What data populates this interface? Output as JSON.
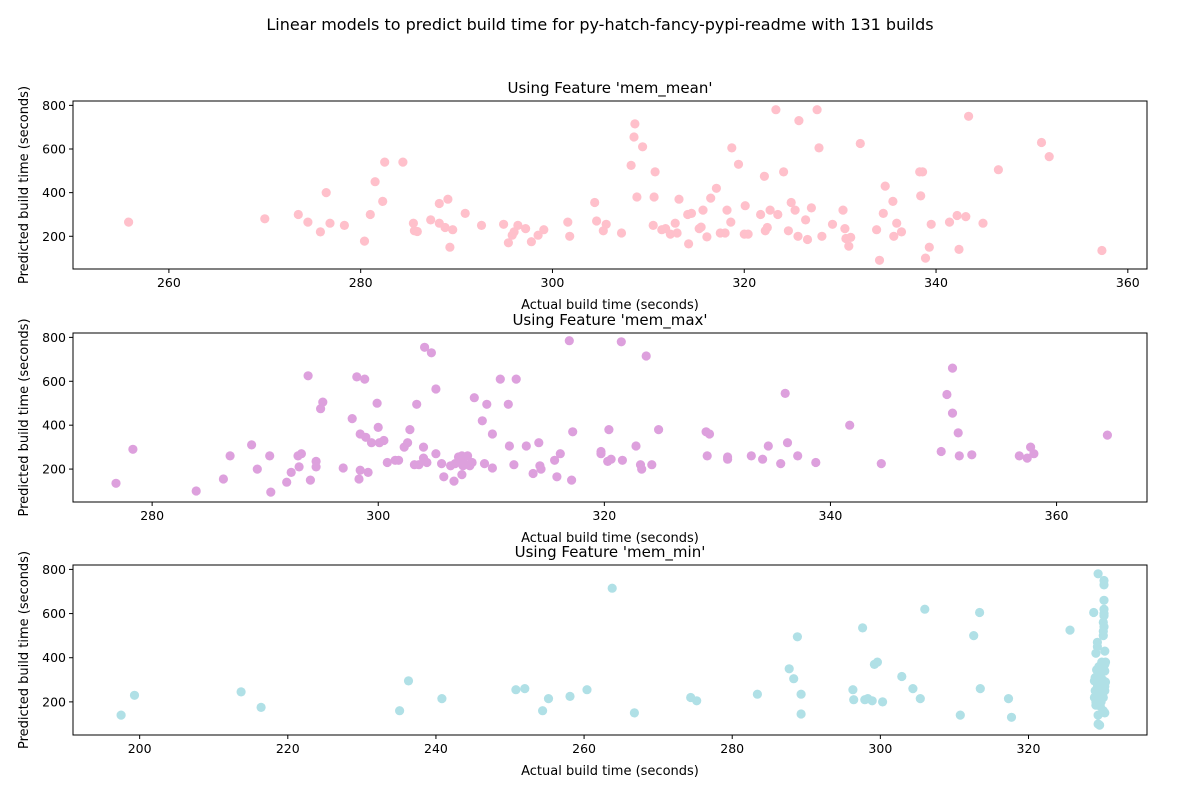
{
  "suptitle": "Linear models to predict build time for py-hatch-fancy-pypi-readme with 131 builds",
  "chart_data": [
    {
      "type": "scatter",
      "title": "Using Feature 'mem_mean'",
      "xlabel": "Actual build time (seconds)",
      "ylabel": "Predicted build time (seconds)",
      "color": "#ffc0cb",
      "xlim": [
        250,
        362
      ],
      "ylim": [
        50,
        820
      ],
      "xticks": [
        260,
        280,
        300,
        320,
        340,
        360
      ],
      "yticks": [
        200,
        400,
        600,
        800
      ],
      "points": [
        [
          255.8,
          265
        ],
        [
          270,
          280
        ],
        [
          273.5,
          300
        ],
        [
          274.5,
          265
        ],
        [
          275.8,
          220
        ],
        [
          276.4,
          400
        ],
        [
          276.8,
          260
        ],
        [
          278.3,
          250
        ],
        [
          280.4,
          178
        ],
        [
          281,
          300
        ],
        [
          281.5,
          450
        ],
        [
          282.3,
          360
        ],
        [
          282.5,
          540
        ],
        [
          284.4,
          540
        ],
        [
          285.5,
          260
        ],
        [
          285.6,
          225
        ],
        [
          285.9,
          222
        ],
        [
          287.3,
          275
        ],
        [
          288.2,
          260
        ],
        [
          288.2,
          350
        ],
        [
          288.8,
          240
        ],
        [
          289.1,
          370
        ],
        [
          289.3,
          150
        ],
        [
          289.6,
          230
        ],
        [
          290.9,
          305
        ],
        [
          292.6,
          250
        ],
        [
          294.9,
          255
        ],
        [
          295.4,
          170
        ],
        [
          295.8,
          205
        ],
        [
          296,
          220
        ],
        [
          296.4,
          250
        ],
        [
          297.2,
          235
        ],
        [
          297.8,
          175
        ],
        [
          298.5,
          205
        ],
        [
          299.1,
          230
        ],
        [
          301.6,
          265
        ],
        [
          301.8,
          200
        ],
        [
          304.4,
          355
        ],
        [
          304.6,
          270
        ],
        [
          305.3,
          225
        ],
        [
          305.6,
          255
        ],
        [
          307.2,
          215
        ],
        [
          308.2,
          525
        ],
        [
          308.5,
          655
        ],
        [
          308.6,
          715
        ],
        [
          308.8,
          380
        ],
        [
          309.4,
          610
        ],
        [
          310.5,
          250
        ],
        [
          310.6,
          380
        ],
        [
          310.7,
          495
        ],
        [
          311.4,
          230
        ],
        [
          311.8,
          235
        ],
        [
          312.3,
          210
        ],
        [
          312.8,
          260
        ],
        [
          313,
          215
        ],
        [
          313.2,
          370
        ],
        [
          314.1,
          300
        ],
        [
          314.2,
          165
        ],
        [
          314.5,
          305
        ],
        [
          315.3,
          235
        ],
        [
          315.5,
          242
        ],
        [
          315.7,
          320
        ],
        [
          316.1,
          197
        ],
        [
          316.5,
          375
        ],
        [
          317.1,
          420
        ],
        [
          317.5,
          215
        ],
        [
          318,
          215
        ],
        [
          318.2,
          320
        ],
        [
          318.6,
          265
        ],
        [
          318.7,
          605
        ],
        [
          319.4,
          530
        ],
        [
          320,
          210
        ],
        [
          320.1,
          340
        ],
        [
          320.4,
          210
        ],
        [
          321.7,
          300
        ],
        [
          322.1,
          475
        ],
        [
          322.2,
          225
        ],
        [
          322.4,
          240
        ],
        [
          322.7,
          320
        ],
        [
          323.3,
          780
        ],
        [
          323.5,
          300
        ],
        [
          324.1,
          495
        ],
        [
          324.6,
          225
        ],
        [
          324.9,
          355
        ],
        [
          325.3,
          320
        ],
        [
          325.6,
          200
        ],
        [
          325.7,
          730
        ],
        [
          326.4,
          275
        ],
        [
          326.6,
          185
        ],
        [
          327,
          330
        ],
        [
          327.6,
          780
        ],
        [
          327.8,
          605
        ],
        [
          328.1,
          200
        ],
        [
          329.2,
          255
        ],
        [
          330.3,
          320
        ],
        [
          330.5,
          235
        ],
        [
          330.6,
          190
        ],
        [
          330.9,
          155
        ],
        [
          331.1,
          195
        ],
        [
          332.1,
          625
        ],
        [
          333.8,
          230
        ],
        [
          334.1,
          90
        ],
        [
          334.5,
          305
        ],
        [
          334.7,
          430
        ],
        [
          335.5,
          360
        ],
        [
          335.6,
          200
        ],
        [
          335.9,
          260
        ],
        [
          336.4,
          220
        ],
        [
          338.3,
          495
        ],
        [
          338.4,
          385
        ],
        [
          338.6,
          495
        ],
        [
          338.9,
          100
        ],
        [
          339.3,
          150
        ],
        [
          339.5,
          255
        ],
        [
          341.4,
          265
        ],
        [
          342.2,
          295
        ],
        [
          342.4,
          140
        ],
        [
          343.1,
          290
        ],
        [
          343.4,
          750
        ],
        [
          344.9,
          260
        ],
        [
          346.5,
          505
        ],
        [
          351,
          630
        ],
        [
          351.8,
          565
        ],
        [
          357.3,
          135
        ]
      ]
    },
    {
      "type": "scatter",
      "title": "Using Feature 'mem_max'",
      "xlabel": "Actual build time (seconds)",
      "ylabel": "Predicted build time (seconds)",
      "color": "#dda0dd",
      "xlim": [
        273,
        368
      ],
      "ylim": [
        50,
        820
      ],
      "xticks": [
        280,
        300,
        320,
        340,
        360
      ],
      "yticks": [
        200,
        400,
        600,
        800
      ],
      "points": [
        [
          276.8,
          135
        ],
        [
          278.3,
          290
        ],
        [
          283.9,
          100
        ],
        [
          286.3,
          155
        ],
        [
          286.9,
          260
        ],
        [
          288.8,
          310
        ],
        [
          289.3,
          200
        ],
        [
          290.4,
          260
        ],
        [
          290.5,
          95
        ],
        [
          291.9,
          140
        ],
        [
          292.3,
          185
        ],
        [
          292.9,
          260
        ],
        [
          293,
          210
        ],
        [
          293.2,
          270
        ],
        [
          293.8,
          625
        ],
        [
          294,
          150
        ],
        [
          294.5,
          235
        ],
        [
          294.5,
          210
        ],
        [
          294.9,
          475
        ],
        [
          295.1,
          505
        ],
        [
          296.9,
          205
        ],
        [
          297.7,
          430
        ],
        [
          298.1,
          620
        ],
        [
          298.3,
          155
        ],
        [
          298.4,
          360
        ],
        [
          298.4,
          195
        ],
        [
          298.8,
          610
        ],
        [
          298.9,
          345
        ],
        [
          299.1,
          185
        ],
        [
          299.4,
          320
        ],
        [
          299.9,
          500
        ],
        [
          300,
          390
        ],
        [
          300.1,
          320
        ],
        [
          300.5,
          330
        ],
        [
          300.8,
          230
        ],
        [
          301.5,
          240
        ],
        [
          301.8,
          240
        ],
        [
          302.3,
          300
        ],
        [
          302.6,
          320
        ],
        [
          302.8,
          380
        ],
        [
          303.2,
          220
        ],
        [
          303.4,
          495
        ],
        [
          303.6,
          220
        ],
        [
          304,
          300
        ],
        [
          304,
          250
        ],
        [
          304.1,
          755
        ],
        [
          304.3,
          230
        ],
        [
          304.7,
          730
        ],
        [
          305.1,
          565
        ],
        [
          305.1,
          270
        ],
        [
          305.6,
          225
        ],
        [
          305.8,
          165
        ],
        [
          306.4,
          215
        ],
        [
          306.7,
          145
        ],
        [
          306.8,
          225
        ],
        [
          307.1,
          255
        ],
        [
          307.2,
          235
        ],
        [
          307.4,
          260
        ],
        [
          307.4,
          175
        ],
        [
          307.5,
          215
        ],
        [
          307.6,
          225
        ],
        [
          307.7,
          255
        ],
        [
          307.9,
          260
        ],
        [
          308.1,
          215
        ],
        [
          308.3,
          230
        ],
        [
          308.5,
          525
        ],
        [
          309.2,
          420
        ],
        [
          309.4,
          225
        ],
        [
          309.6,
          495
        ],
        [
          310.1,
          360
        ],
        [
          310.1,
          205
        ],
        [
          310.8,
          610
        ],
        [
          311.5,
          495
        ],
        [
          311.6,
          305
        ],
        [
          312,
          220
        ],
        [
          312.2,
          610
        ],
        [
          313.1,
          305
        ],
        [
          313.7,
          180
        ],
        [
          314.2,
          320
        ],
        [
          314.3,
          215
        ],
        [
          314.4,
          200
        ],
        [
          315.6,
          240
        ],
        [
          315.8,
          165
        ],
        [
          316.1,
          270
        ],
        [
          316.9,
          785
        ],
        [
          317.1,
          150
        ],
        [
          317.2,
          370
        ],
        [
          319.7,
          270
        ],
        [
          319.7,
          280
        ],
        [
          320.3,
          235
        ],
        [
          320.4,
          380
        ],
        [
          320.6,
          245
        ],
        [
          321.5,
          780
        ],
        [
          321.6,
          240
        ],
        [
          322.8,
          305
        ],
        [
          323.2,
          220
        ],
        [
          323.3,
          200
        ],
        [
          323.7,
          715
        ],
        [
          324.2,
          220
        ],
        [
          324.8,
          380
        ],
        [
          329,
          370
        ],
        [
          329.1,
          260
        ],
        [
          329.3,
          360
        ],
        [
          330.9,
          255
        ],
        [
          330.9,
          245
        ],
        [
          333,
          260
        ],
        [
          334,
          245
        ],
        [
          334.5,
          305
        ],
        [
          335.6,
          225
        ],
        [
          336,
          545
        ],
        [
          336.2,
          320
        ],
        [
          337.1,
          260
        ],
        [
          338.7,
          230
        ],
        [
          341.7,
          400
        ],
        [
          344.5,
          225
        ],
        [
          349.8,
          280
        ],
        [
          350.3,
          540
        ],
        [
          350.8,
          455
        ],
        [
          350.8,
          660
        ],
        [
          351.3,
          365
        ],
        [
          351.4,
          260
        ],
        [
          352.5,
          265
        ],
        [
          356.7,
          260
        ],
        [
          357.4,
          250
        ],
        [
          357.7,
          300
        ],
        [
          358,
          270
        ],
        [
          364.5,
          355
        ]
      ]
    },
    {
      "type": "scatter",
      "title": "Using Feature 'mem_min'",
      "xlabel": "Actual build time (seconds)",
      "ylabel": "Predicted build time (seconds)",
      "color": "#b0e0e6",
      "xlim": [
        191,
        336
      ],
      "ylim": [
        50,
        820
      ],
      "xticks": [
        200,
        220,
        240,
        260,
        280,
        300,
        320
      ],
      "yticks": [
        200,
        400,
        600,
        800
      ],
      "points": [
        [
          197.5,
          140
        ],
        [
          199.3,
          230
        ],
        [
          213.7,
          245
        ],
        [
          216.4,
          175
        ],
        [
          235.1,
          160
        ],
        [
          236.3,
          295
        ],
        [
          240.8,
          215
        ],
        [
          250.8,
          255
        ],
        [
          252,
          260
        ],
        [
          254.4,
          160
        ],
        [
          255.2,
          215
        ],
        [
          258.1,
          225
        ],
        [
          260.4,
          255
        ],
        [
          263.8,
          715
        ],
        [
          266.8,
          150
        ],
        [
          274.4,
          220
        ],
        [
          275.2,
          205
        ],
        [
          283.4,
          235
        ],
        [
          287.7,
          350
        ],
        [
          288.3,
          305
        ],
        [
          288.8,
          495
        ],
        [
          289.3,
          235
        ],
        [
          289.3,
          145
        ],
        [
          296.3,
          255
        ],
        [
          296.4,
          210
        ],
        [
          297.6,
          535
        ],
        [
          297.9,
          210
        ],
        [
          298.3,
          215
        ],
        [
          298.9,
          205
        ],
        [
          299.2,
          370
        ],
        [
          299.6,
          380
        ],
        [
          300.3,
          200
        ],
        [
          302.9,
          315
        ],
        [
          304.4,
          260
        ],
        [
          305.4,
          215
        ],
        [
          306,
          620
        ],
        [
          310.8,
          140
        ],
        [
          312.6,
          500
        ],
        [
          313.4,
          605
        ],
        [
          313.5,
          260
        ],
        [
          317.3,
          215
        ],
        [
          317.7,
          130
        ],
        [
          325.6,
          525
        ],
        [
          328.8,
          605
        ],
        [
          328.9,
          220
        ],
        [
          328.9,
          295
        ],
        [
          329,
          310
        ],
        [
          329,
          250
        ],
        [
          329.1,
          420
        ],
        [
          329.1,
          185
        ],
        [
          329.1,
          200
        ],
        [
          329.2,
          345
        ],
        [
          329.3,
          450
        ],
        [
          329.3,
          470
        ],
        [
          329.3,
          270
        ],
        [
          329.4,
          780
        ],
        [
          329.4,
          100
        ],
        [
          329.4,
          140
        ],
        [
          329.5,
          360
        ],
        [
          329.5,
          230
        ],
        [
          329.5,
          280
        ],
        [
          329.6,
          310
        ],
        [
          329.6,
          95
        ],
        [
          329.7,
          240
        ],
        [
          329.7,
          180
        ],
        [
          329.8,
          200
        ],
        [
          329.8,
          330
        ],
        [
          329.9,
          380
        ],
        [
          330,
          260
        ],
        [
          330,
          300
        ],
        [
          330.1,
          160
        ],
        [
          330.1,
          220
        ],
        [
          330.1,
          500
        ],
        [
          330.1,
          520
        ],
        [
          330.1,
          560
        ],
        [
          330.2,
          660
        ],
        [
          330.2,
          750
        ],
        [
          330.2,
          730
        ],
        [
          330.2,
          620
        ],
        [
          330.2,
          600
        ],
        [
          330.2,
          590
        ],
        [
          330.2,
          540
        ],
        [
          330.3,
          430
        ],
        [
          330.3,
          370
        ],
        [
          330.3,
          340
        ],
        [
          330.3,
          270
        ],
        [
          330.3,
          250
        ],
        [
          330.3,
          150
        ],
        [
          330.4,
          380
        ],
        [
          330.4,
          290
        ]
      ]
    }
  ]
}
